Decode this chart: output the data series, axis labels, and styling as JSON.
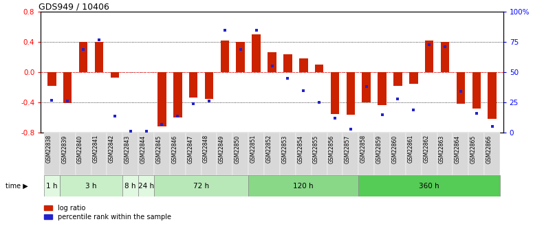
{
  "title": "GDS949 / 10406",
  "samples": [
    "GSM22838",
    "GSM22839",
    "GSM22840",
    "GSM22841",
    "GSM22842",
    "GSM22843",
    "GSM22844",
    "GSM22845",
    "GSM22846",
    "GSM22847",
    "GSM22848",
    "GSM22849",
    "GSM22850",
    "GSM22851",
    "GSM22852",
    "GSM22853",
    "GSM22854",
    "GSM22855",
    "GSM22856",
    "GSM22857",
    "GSM22858",
    "GSM22859",
    "GSM22860",
    "GSM22861",
    "GSM22862",
    "GSM22863",
    "GSM22864",
    "GSM22865",
    "GSM22866"
  ],
  "log_ratio": [
    -0.18,
    -0.41,
    0.4,
    0.4,
    -0.07,
    0.0,
    0.0,
    -0.72,
    -0.6,
    -0.33,
    -0.35,
    0.42,
    0.4,
    0.5,
    0.27,
    0.24,
    0.18,
    0.1,
    -0.55,
    -0.56,
    -0.4,
    -0.43,
    -0.18,
    -0.15,
    0.42,
    0.4,
    -0.42,
    -0.48,
    -0.62
  ],
  "percentile": [
    27,
    26,
    69,
    77,
    14,
    1,
    1,
    7,
    14,
    24,
    26,
    85,
    69,
    85,
    55,
    45,
    35,
    25,
    12,
    3,
    38,
    15,
    28,
    19,
    73,
    71,
    34,
    16,
    5
  ],
  "time_groups": [
    {
      "label": "1 h",
      "start": 0,
      "end": 1,
      "color": "#e0f7e0"
    },
    {
      "label": "3 h",
      "start": 1,
      "end": 5,
      "color": "#c8efc8"
    },
    {
      "label": "8 h",
      "start": 5,
      "end": 6,
      "color": "#e0f7e0"
    },
    {
      "label": "24 h",
      "start": 6,
      "end": 7,
      "color": "#e0f7e0"
    },
    {
      "label": "72 h",
      "start": 7,
      "end": 13,
      "color": "#b8e8b8"
    },
    {
      "label": "120 h",
      "start": 13,
      "end": 20,
      "color": "#88d888"
    },
    {
      "label": "360 h",
      "start": 20,
      "end": 29,
      "color": "#55cc55"
    }
  ],
  "bar_color": "#cc2200",
  "dot_color": "#2222cc",
  "ylim": [
    -0.8,
    0.8
  ],
  "yticks_left": [
    -0.8,
    -0.4,
    0.0,
    0.4,
    0.8
  ],
  "yticks_right": [
    0,
    25,
    50,
    75,
    100
  ],
  "ytick_labels_right": [
    "0",
    "25",
    "50",
    "75",
    "100%"
  ],
  "dotted_lines": [
    -0.4,
    0.0,
    0.4
  ],
  "zero_line_color": "#ff4444"
}
